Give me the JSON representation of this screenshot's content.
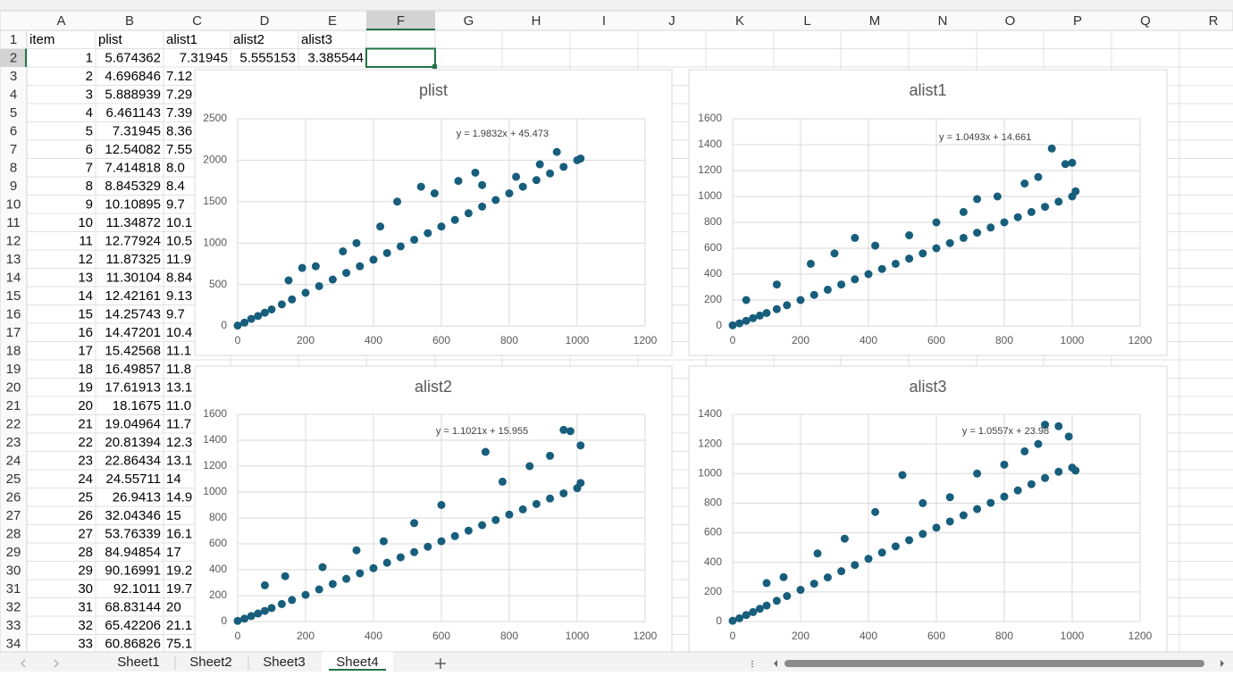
{
  "sheet": {
    "column_labels": [
      "A",
      "B",
      "C",
      "D",
      "E",
      "F",
      "G",
      "H",
      "I",
      "J",
      "K",
      "L",
      "M",
      "N",
      "O",
      "P",
      "Q",
      "R"
    ],
    "row_labels": [
      1,
      2,
      3,
      4,
      5,
      6,
      7,
      8,
      9,
      10,
      11,
      12,
      13,
      14,
      15,
      16,
      17,
      18,
      19,
      20,
      21,
      22,
      23,
      24,
      25,
      26,
      27,
      28,
      29,
      30,
      31,
      32,
      33,
      34
    ],
    "cells": [
      [
        "item",
        "plist",
        "alist1",
        "alist2",
        "alist3"
      ],
      [
        1,
        5.674362,
        7.31945,
        5.555153,
        3.385544
      ],
      [
        2,
        4.696846,
        "7.12"
      ],
      [
        3,
        5.888939,
        "7.29"
      ],
      [
        4,
        6.461143,
        "7.39"
      ],
      [
        5,
        7.31945,
        "8.36"
      ],
      [
        6,
        12.54082,
        "7.55"
      ],
      [
        7,
        7.414818,
        "8.0"
      ],
      [
        8,
        8.845329,
        "8.4"
      ],
      [
        9,
        10.10895,
        "9.7"
      ],
      [
        10,
        11.34872,
        "10.1"
      ],
      [
        11,
        12.77924,
        "10.5"
      ],
      [
        12,
        11.87325,
        "11.9"
      ],
      [
        13,
        11.30104,
        "8.84"
      ],
      [
        14,
        12.42161,
        "9.13"
      ],
      [
        15,
        14.25743,
        "9.7"
      ],
      [
        16,
        14.47201,
        "10.4"
      ],
      [
        17,
        15.42568,
        "11.1"
      ],
      [
        18,
        16.49857,
        "11.8"
      ],
      [
        19,
        17.61913,
        "13.1"
      ],
      [
        20,
        18.1675,
        "11.0"
      ],
      [
        21,
        19.04964,
        "11.7"
      ],
      [
        22,
        20.81394,
        "12.3"
      ],
      [
        23,
        22.86434,
        "13.1"
      ],
      [
        24,
        24.55711,
        "14"
      ],
      [
        25,
        26.9413,
        "14.9"
      ],
      [
        26,
        32.04346,
        "15"
      ],
      [
        27,
        53.76339,
        "16.1"
      ],
      [
        28,
        84.94854,
        "17"
      ],
      [
        29,
        90.16991,
        "19.2"
      ],
      [
        30,
        92.1011,
        "19.7"
      ],
      [
        31,
        68.83144,
        "20"
      ],
      [
        32,
        65.42206,
        "21.1"
      ],
      [
        33,
        60.86826,
        "75.1"
      ]
    ],
    "selected_column": 5,
    "selected_row": 1
  },
  "tabs": [
    "Sheet1",
    "Sheet2",
    "Sheet3",
    "Sheet4"
  ],
  "active_tab": 3,
  "chart_data": [
    {
      "type": "scatter",
      "title": "plist",
      "annotation": "y = 1.9832x + 45.473",
      "color": "#175e7c",
      "grid": true,
      "xlim": [
        0,
        1200
      ],
      "xticks": [
        0,
        200,
        400,
        600,
        800,
        1000,
        1200
      ],
      "ylim": [
        0,
        2500
      ],
      "yticks": [
        0,
        500,
        1000,
        1500,
        2000,
        2500
      ],
      "x": [
        0,
        20,
        40,
        60,
        80,
        100,
        130,
        160,
        200,
        240,
        280,
        320,
        360,
        400,
        440,
        480,
        520,
        560,
        600,
        640,
        680,
        720,
        760,
        800,
        840,
        880,
        920,
        960,
        1000,
        1010,
        150,
        190,
        230,
        310,
        350,
        420,
        470,
        540,
        580,
        650,
        700,
        720,
        820,
        890,
        940
      ],
      "y": [
        5,
        40,
        85,
        120,
        160,
        200,
        260,
        320,
        400,
        480,
        560,
        640,
        720,
        800,
        880,
        960,
        1040,
        1120,
        1200,
        1280,
        1360,
        1440,
        1520,
        1600,
        1680,
        1760,
        1840,
        1920,
        2000,
        2020,
        550,
        700,
        720,
        900,
        1000,
        1200,
        1500,
        1680,
        1600,
        1750,
        1850,
        1700,
        1800,
        1950,
        2100
      ]
    },
    {
      "type": "scatter",
      "title": "alist1",
      "annotation": "y = 1.0493x + 14.661",
      "color": "#175e7c",
      "grid": true,
      "xlim": [
        0,
        1200
      ],
      "xticks": [
        0,
        200,
        400,
        600,
        800,
        1000,
        1200
      ],
      "ylim": [
        0,
        1600
      ],
      "yticks": [
        0,
        200,
        400,
        600,
        800,
        1000,
        1200,
        1400,
        1600
      ],
      "x": [
        0,
        20,
        40,
        60,
        80,
        100,
        130,
        160,
        200,
        240,
        280,
        320,
        360,
        400,
        440,
        480,
        520,
        560,
        600,
        640,
        680,
        720,
        760,
        800,
        840,
        880,
        920,
        960,
        1000,
        1010,
        40,
        130,
        230,
        300,
        360,
        420,
        520,
        600,
        680,
        720,
        780,
        860,
        900,
        940,
        980,
        1000
      ],
      "y": [
        5,
        20,
        40,
        60,
        80,
        100,
        130,
        160,
        200,
        240,
        280,
        320,
        360,
        400,
        440,
        480,
        520,
        560,
        600,
        640,
        680,
        720,
        760,
        800,
        840,
        880,
        920,
        960,
        1000,
        1040,
        200,
        320,
        480,
        560,
        680,
        620,
        700,
        800,
        880,
        980,
        1000,
        1100,
        1150,
        1370,
        1250,
        1260
      ]
    },
    {
      "type": "scatter",
      "title": "alist2",
      "annotation": "y = 1.1021x + 15.955",
      "color": "#175e7c",
      "grid": true,
      "xlim": [
        0,
        1200
      ],
      "xticks": [
        0,
        200,
        400,
        600,
        800,
        1000,
        1200
      ],
      "ylim": [
        0,
        1600
      ],
      "yticks": [
        0,
        200,
        400,
        600,
        800,
        1000,
        1200,
        1400,
        1600
      ],
      "x": [
        0,
        20,
        40,
        60,
        80,
        100,
        130,
        160,
        200,
        240,
        280,
        320,
        360,
        400,
        440,
        480,
        520,
        560,
        600,
        640,
        680,
        720,
        760,
        800,
        840,
        880,
        920,
        960,
        1000,
        1010,
        80,
        140,
        250,
        350,
        430,
        520,
        600,
        730,
        780,
        860,
        920,
        960,
        980,
        1010
      ],
      "y": [
        5,
        22,
        42,
        62,
        82,
        104,
        135,
        166,
        206,
        248,
        290,
        330,
        372,
        412,
        454,
        496,
        536,
        578,
        620,
        660,
        702,
        744,
        784,
        826,
        866,
        908,
        950,
        990,
        1030,
        1070,
        280,
        350,
        420,
        550,
        620,
        760,
        900,
        1310,
        1080,
        1200,
        1280,
        1480,
        1470,
        1360
      ]
    },
    {
      "type": "scatter",
      "title": "alist3",
      "annotation": "y = 1.0557x + 23.98",
      "color": "#175e7c",
      "grid": true,
      "xlim": [
        0,
        1200
      ],
      "xticks": [
        0,
        200,
        400,
        600,
        800,
        1000,
        1200
      ],
      "ylim": [
        0,
        1400
      ],
      "yticks": [
        0,
        200,
        400,
        600,
        800,
        1000,
        1200,
        1400
      ],
      "x": [
        0,
        20,
        40,
        60,
        80,
        100,
        130,
        160,
        200,
        240,
        280,
        320,
        360,
        400,
        440,
        480,
        520,
        560,
        600,
        640,
        680,
        720,
        760,
        800,
        840,
        880,
        920,
        960,
        1000,
        1010,
        100,
        150,
        250,
        330,
        420,
        500,
        560,
        640,
        720,
        800,
        860,
        900,
        920,
        960,
        990
      ],
      "y": [
        5,
        22,
        44,
        64,
        86,
        108,
        140,
        172,
        214,
        256,
        298,
        340,
        382,
        424,
        466,
        508,
        550,
        592,
        634,
        676,
        718,
        760,
        802,
        844,
        886,
        928,
        970,
        1012,
        1040,
        1020,
        260,
        300,
        460,
        560,
        740,
        990,
        800,
        840,
        1000,
        1060,
        1150,
        1200,
        1330,
        1320,
        1250
      ]
    }
  ]
}
